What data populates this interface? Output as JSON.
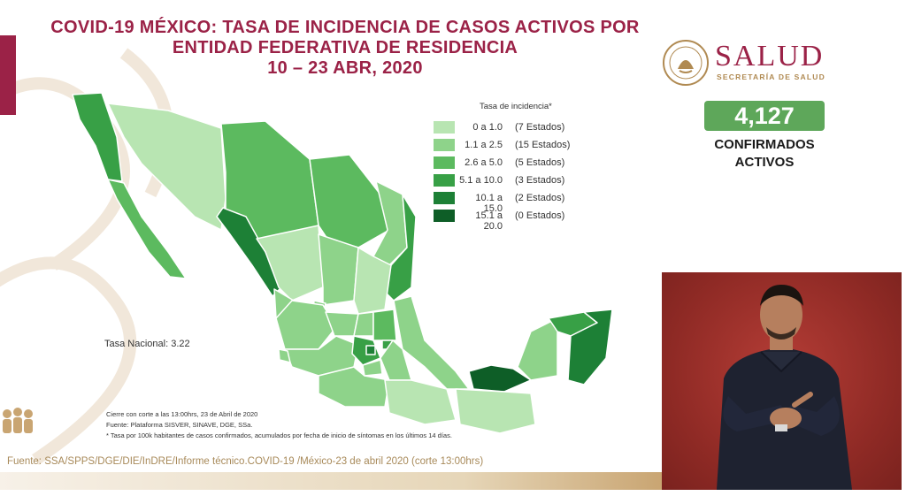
{
  "title": {
    "line1": "COVID-19 MÉXICO: TASA DE INCIDENCIA DE CASOS ACTIVOS POR",
    "line2": "ENTIDAD FEDERATIVA DE RESIDENCIA",
    "line3": "10 – 23 ABR, 2020"
  },
  "logo": {
    "name": "SALUD",
    "subtitle": "SECRETARÍA DE SALUD",
    "seal_text": "ESTADOS UNIDOS MEXICANOS"
  },
  "summary": {
    "count": "4,127",
    "label_line1": "CONFIRMADOS",
    "label_line2": "ACTIVOS"
  },
  "legend": {
    "title": "Tasa de incidencia*",
    "items": [
      {
        "range": "0 a 1.0",
        "count": "(7 Estados)",
        "color": "#b8e5b2"
      },
      {
        "range": "1.1 a 2.5",
        "count": "(15 Estados)",
        "color": "#8ed38a"
      },
      {
        "range": "2.6 a 5.0",
        "count": "(5 Estados)",
        "color": "#5cba5f"
      },
      {
        "range": "5.1 a 10.0",
        "count": "(3 Estados)",
        "color": "#38a046"
      },
      {
        "range": "10.1 a 15.0",
        "count": "(2 Estados)",
        "color": "#1d8036"
      },
      {
        "range": "15.1 a 20.0",
        "count": "(0 Estados)",
        "color": "#0e5e27"
      }
    ]
  },
  "national_rate": "Tasa Nacional: 3.22",
  "notes": {
    "cutoff": "Cierre con corte a las 13:00hrs, 23 de Abril de 2020",
    "source": "Fuente: Plataforma SISVER, SINAVE, DGE, SSa.",
    "footnote": "* Tasa por 100k habitantes de casos confirmados, acumulados por fecha de inicio de síntomas en los últimos 14 días."
  },
  "footer": "Fuente: SSA/SPPS/DGE/DIE/InDRE/Informe técnico.COVID-19 /México-23 de abril 2020 (corte 13:00hrs)",
  "colors": {
    "brand": "#9b2247",
    "accent_gold": "#b08a52",
    "count_bg": "#5ea75a",
    "interpreter_bg": "#8f2a25"
  }
}
